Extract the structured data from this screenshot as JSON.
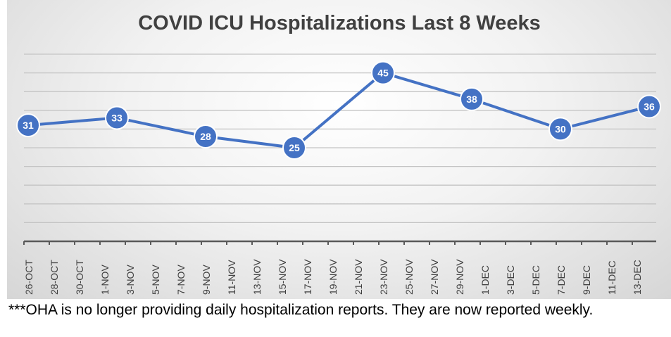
{
  "chart_data": {
    "type": "line",
    "title": "COVID ICU Hospitalizations Last 8 Weeks",
    "xlabel": "",
    "ylabel": "",
    "ylim": [
      0,
      50
    ],
    "y_grid_step": 5,
    "grid": true,
    "legend": "none",
    "tick_labels": [
      "26-OCT",
      "28-OCT",
      "30-OCT",
      "1-NOV",
      "3-NOV",
      "5-NOV",
      "7-NOV",
      "9-NOV",
      "11-NOV",
      "13-NOV",
      "15-NOV",
      "17-NOV",
      "19-NOV",
      "21-NOV",
      "23-NOV",
      "25-NOV",
      "27-NOV",
      "29-NOV",
      "1-DEC",
      "3-DEC",
      "5-DEC",
      "7-DEC",
      "9-DEC",
      "11-DEC",
      "13-DEC"
    ],
    "series": [
      {
        "name": "ICU Hospitalizations",
        "color": "#4472c4",
        "x_days_from_26_oct": [
          0,
          7,
          14,
          21,
          28,
          35,
          42,
          49
        ],
        "x": [
          "26-OCT",
          "2-NOV",
          "9-NOV",
          "16-NOV",
          "23-NOV",
          "30-NOV",
          "7-DEC",
          "14-DEC"
        ],
        "values": [
          31,
          33,
          28,
          25,
          45,
          38,
          30,
          36
        ]
      }
    ]
  },
  "footnote": "***OHA is no longer providing daily hospitalization reports.  They are now reported weekly."
}
